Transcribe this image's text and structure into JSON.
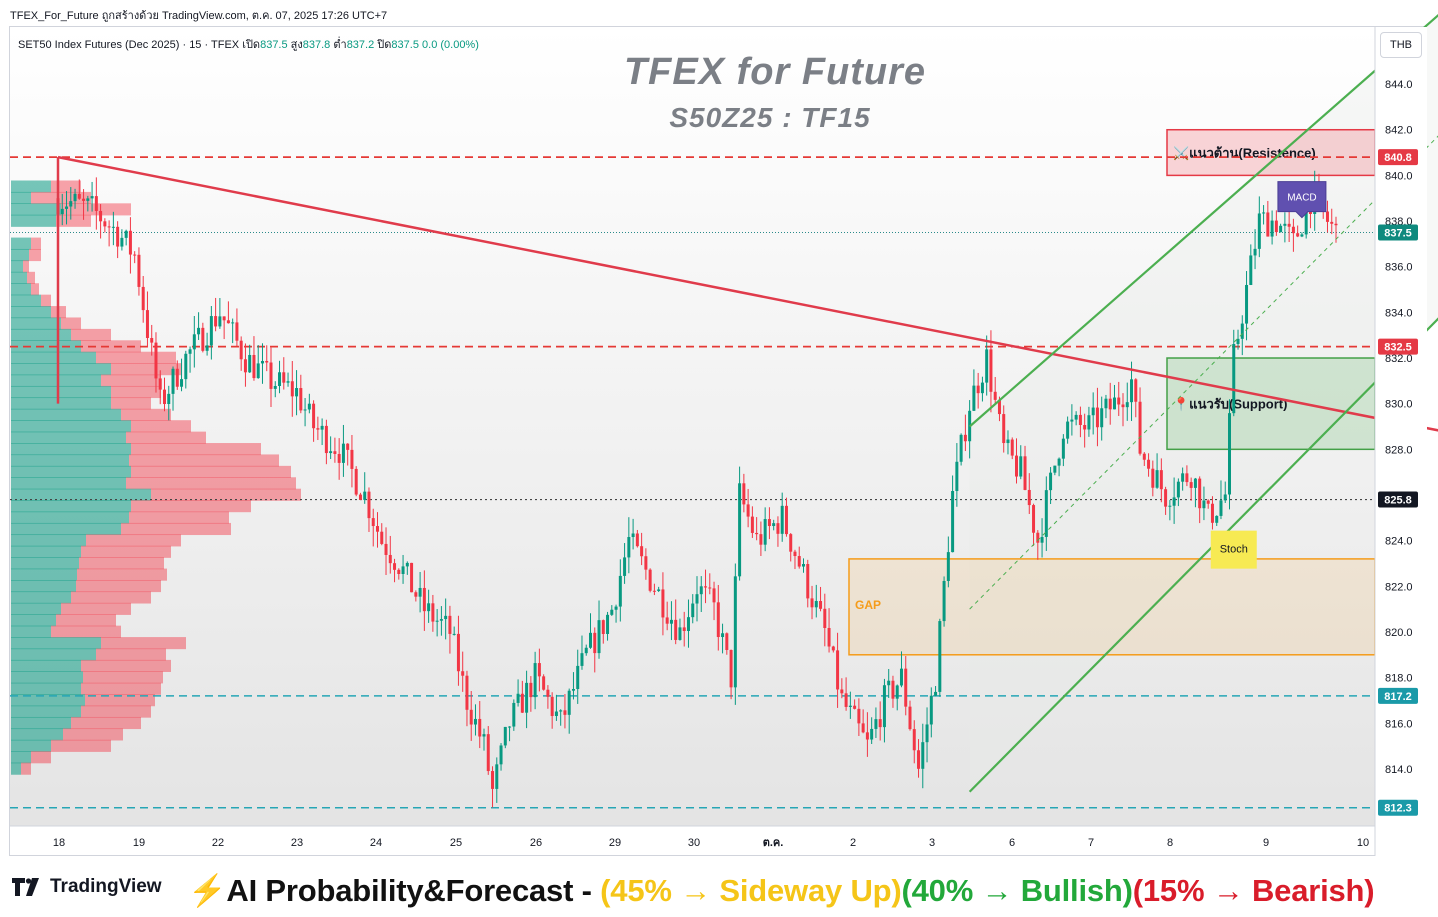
{
  "header": {
    "source_line": "TFEX_For_Future ถูกสร้างด้วย TradingView.com, ต.ค. 07, 2025 17:26 UTC+7"
  },
  "legend": {
    "symbol_text": "SET50 Index Futures (Dec 2025) · 15 · TFEX",
    "open_label": "เปิด",
    "open_value": "837.5",
    "high_label": "สูง",
    "high_value": "837.8",
    "low_label": "ต่ำ",
    "low_value": "837.2",
    "close_label": "ปิด",
    "close_value": "837.5",
    "change": "0.0 (0.00%)"
  },
  "unit_badge": "THB",
  "footer": {
    "logo_text": "TradingView",
    "forecast_prefix": "⚡AI Probability&Forecast - ",
    "part_sideway": "(45% → Sideway Up)",
    "part_bullish": "(40% → Bullish)",
    "part_bearish": "(15% → Bearish)"
  },
  "colors": {
    "bull": "#089981",
    "bear": "#f23645",
    "trendline": "#e03b4b",
    "channel": "#4caf50",
    "gap": "#f59c1a",
    "price_label": "#2a8a8a",
    "dashed_red": "#e53935",
    "dashed_teal": "#26a6b5"
  },
  "chart_data": {
    "type": "candlestick",
    "title": "TFEX for Future",
    "subtitle": "S50Z25 : TF15",
    "ylim": [
      811.5,
      846.5
    ],
    "yticks": [
      "844.0",
      "842.0",
      "840.0",
      "838.0",
      "836.0",
      "834.0",
      "832.0",
      "830.0",
      "828.0",
      "824.0",
      "822.0",
      "820.0",
      "818.0",
      "816.0",
      "814.0"
    ],
    "ytick_values": [
      844,
      842,
      840,
      838,
      836,
      834,
      832,
      830,
      828,
      824,
      822,
      820,
      818,
      816,
      814
    ],
    "x_labels": [
      "18",
      "19",
      "22",
      "23",
      "24",
      "25",
      "26",
      "29",
      "30",
      "ต.ค.",
      "2",
      "3",
      "6",
      "7",
      "8",
      "9",
      "10"
    ],
    "price_levels": [
      {
        "value": 840.8,
        "label": "840.8",
        "style": "dashed-red"
      },
      {
        "value": 837.5,
        "label": "837.5",
        "style": "current"
      },
      {
        "value": 832.5,
        "label": "832.5",
        "style": "dashed-red"
      },
      {
        "value": 825.8,
        "label": "825.8",
        "style": "dotted"
      },
      {
        "value": 817.2,
        "label": "817.2",
        "style": "dashed-teal"
      },
      {
        "value": 812.3,
        "label": "812.3",
        "style": "dashed-teal"
      }
    ],
    "price_path": [
      [
        0,
        839
      ],
      [
        4,
        838.5
      ],
      [
        7,
        837.5
      ],
      [
        9,
        836.5
      ],
      [
        12,
        830
      ],
      [
        15,
        832
      ],
      [
        19,
        834
      ],
      [
        22,
        832
      ],
      [
        25,
        831
      ],
      [
        28,
        830.5
      ],
      [
        30,
        829
      ],
      [
        33,
        828
      ],
      [
        36,
        826
      ],
      [
        38,
        824
      ],
      [
        40,
        823
      ],
      [
        43,
        821
      ],
      [
        46,
        820
      ],
      [
        48,
        817
      ],
      [
        50,
        815
      ],
      [
        51,
        813
      ],
      [
        53,
        816
      ],
      [
        56,
        818
      ],
      [
        59,
        816
      ],
      [
        62,
        819
      ],
      [
        65,
        821
      ],
      [
        67,
        824
      ],
      [
        70,
        822
      ],
      [
        73,
        820
      ],
      [
        75,
        822
      ],
      [
        77,
        821
      ],
      [
        79,
        818
      ],
      [
        80,
        826
      ],
      [
        82,
        824
      ],
      [
        85,
        825
      ],
      [
        88,
        822
      ],
      [
        90,
        820
      ],
      [
        92,
        817
      ],
      [
        95,
        815
      ],
      [
        97,
        817
      ],
      [
        99,
        818
      ],
      [
        101,
        814
      ],
      [
        103,
        818
      ],
      [
        105,
        826
      ],
      [
        107,
        830
      ],
      [
        109,
        832
      ],
      [
        111,
        828
      ],
      [
        113,
        827
      ],
      [
        115,
        824
      ],
      [
        118,
        829
      ],
      [
        121,
        829
      ],
      [
        124,
        830
      ],
      [
        126,
        831
      ],
      [
        127,
        828
      ],
      [
        130,
        826
      ],
      [
        133,
        827
      ],
      [
        135,
        825
      ],
      [
        137,
        826
      ],
      [
        138,
        832
      ],
      [
        139,
        834
      ],
      [
        141,
        838
      ],
      [
        143,
        838
      ],
      [
        145,
        837
      ],
      [
        147,
        839
      ],
      [
        150,
        837.5
      ]
    ],
    "trendline": {
      "start": [
        0,
        840.8
      ],
      "end": [
        180,
        827.5
      ]
    },
    "channel_upper": {
      "start": [
        107,
        829
      ],
      "end": [
        165,
        848
      ]
    },
    "channel_lower": {
      "start": [
        107,
        813
      ],
      "end": [
        176,
        839
      ]
    },
    "channel_mid": {
      "start": [
        107,
        821
      ],
      "end": [
        176,
        847
      ]
    },
    "zones": [
      {
        "label": "แนวต้าน(Resistence)",
        "from": 840,
        "to": 842,
        "icon": "⚔️",
        "color": "red"
      },
      {
        "label": "แนวรับ(Support)",
        "from": 828,
        "to": 832,
        "icon": "📍",
        "color": "green"
      },
      {
        "label": "GAP",
        "from": 819,
        "to": 823.2,
        "color": "orange"
      }
    ],
    "badges": [
      {
        "label": "MACD",
        "x": 146,
        "value": 838.5
      },
      {
        "label": "Stoch",
        "x": 138,
        "value": 824
      }
    ],
    "volume_profile": [
      {
        "price": 839.5,
        "buy": 40,
        "sell": 30
      },
      {
        "price": 839.0,
        "buy": 20,
        "sell": 60
      },
      {
        "price": 838.5,
        "buy": 50,
        "sell": 70
      },
      {
        "price": 838.0,
        "buy": 45,
        "sell": 35
      },
      {
        "price": 837.0,
        "buy": 20,
        "sell": 10
      },
      {
        "price": 836.5,
        "buy": 18,
        "sell": 12
      },
      {
        "price": 836.0,
        "buy": 12,
        "sell": 6
      },
      {
        "price": 835.5,
        "buy": 16,
        "sell": 8
      },
      {
        "price": 835.0,
        "buy": 20,
        "sell": 8
      },
      {
        "price": 834.5,
        "buy": 30,
        "sell": 10
      },
      {
        "price": 834.0,
        "buy": 40,
        "sell": 15
      },
      {
        "price": 833.5,
        "buy": 50,
        "sell": 20
      },
      {
        "price": 833.0,
        "buy": 60,
        "sell": 40
      },
      {
        "price": 832.5,
        "buy": 70,
        "sell": 60
      },
      {
        "price": 832.0,
        "buy": 85,
        "sell": 80
      },
      {
        "price": 831.5,
        "buy": 100,
        "sell": 70
      },
      {
        "price": 831.0,
        "buy": 90,
        "sell": 60
      },
      {
        "price": 830.5,
        "buy": 100,
        "sell": 50
      },
      {
        "price": 830.0,
        "buy": 100,
        "sell": 40
      },
      {
        "price": 829.5,
        "buy": 110,
        "sell": 50
      },
      {
        "price": 829.0,
        "buy": 120,
        "sell": 60
      },
      {
        "price": 828.5,
        "buy": 115,
        "sell": 80
      },
      {
        "price": 828.0,
        "buy": 120,
        "sell": 130
      },
      {
        "price": 827.5,
        "buy": 118,
        "sell": 150
      },
      {
        "price": 827.0,
        "buy": 120,
        "sell": 160
      },
      {
        "price": 826.5,
        "buy": 115,
        "sell": 170
      },
      {
        "price": 826.0,
        "buy": 140,
        "sell": 150
      },
      {
        "price": 825.5,
        "buy": 120,
        "sell": 120
      },
      {
        "price": 825.0,
        "buy": 118,
        "sell": 100
      },
      {
        "price": 824.5,
        "buy": 110,
        "sell": 110
      },
      {
        "price": 824.0,
        "buy": 75,
        "sell": 95
      },
      {
        "price": 823.5,
        "buy": 70,
        "sell": 90
      },
      {
        "price": 823.0,
        "buy": 68,
        "sell": 85
      },
      {
        "price": 822.5,
        "buy": 66,
        "sell": 90
      },
      {
        "price": 822.0,
        "buy": 65,
        "sell": 85
      },
      {
        "price": 821.5,
        "buy": 60,
        "sell": 80
      },
      {
        "price": 821.0,
        "buy": 50,
        "sell": 70
      },
      {
        "price": 820.5,
        "buy": 45,
        "sell": 60
      },
      {
        "price": 820.0,
        "buy": 40,
        "sell": 70
      },
      {
        "price": 819.5,
        "buy": 90,
        "sell": 85
      },
      {
        "price": 819.0,
        "buy": 85,
        "sell": 70
      },
      {
        "price": 818.5,
        "buy": 70,
        "sell": 90
      },
      {
        "price": 818.0,
        "buy": 72,
        "sell": 80
      },
      {
        "price": 817.5,
        "buy": 70,
        "sell": 80
      },
      {
        "price": 817.0,
        "buy": 74,
        "sell": 70
      },
      {
        "price": 816.5,
        "buy": 70,
        "sell": 70
      },
      {
        "price": 816.0,
        "buy": 60,
        "sell": 70
      },
      {
        "price": 815.5,
        "buy": 52,
        "sell": 60
      },
      {
        "price": 815.0,
        "buy": 40,
        "sell": 60
      },
      {
        "price": 814.5,
        "buy": 20,
        "sell": 20
      },
      {
        "price": 814.0,
        "buy": 10,
        "sell": 10
      }
    ]
  }
}
